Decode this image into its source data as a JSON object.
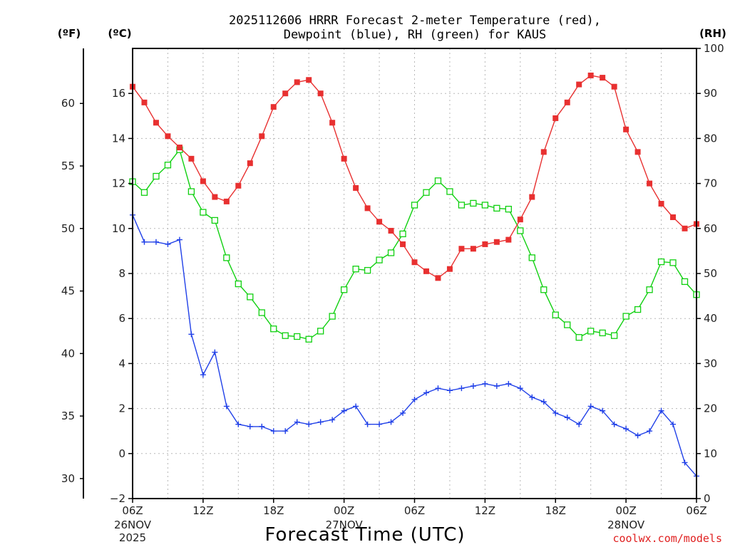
{
  "chart_data": {
    "type": "line",
    "title_line1": "2025112606 HRRR Forecast 2-meter Temperature (red),",
    "title_line2": "Dewpoint (blue), RH (green) for KAUS",
    "unit_f": "(ºF)",
    "unit_c": "(ºC)",
    "unit_rh": "(RH)",
    "xlabel": "Forecast Time (UTC)",
    "credit": "coolwx.com/models",
    "hour_range": [
      0,
      48
    ],
    "c_range": [
      -2,
      18
    ],
    "rh_range": [
      0,
      100
    ],
    "c_ticks": [
      "−2",
      "0",
      "2",
      "4",
      "6",
      "8",
      "10",
      "12",
      "14",
      "16"
    ],
    "rh_ticks": [
      "0",
      "10",
      "20",
      "30",
      "40",
      "50",
      "60",
      "70",
      "80",
      "90",
      "100"
    ],
    "f_ticks": [
      "30",
      "35",
      "40",
      "45",
      "50",
      "55",
      "60"
    ],
    "x_ticks": [
      {
        "hour": 0,
        "label": "06Z"
      },
      {
        "hour": 6,
        "label": "12Z"
      },
      {
        "hour": 12,
        "label": "18Z"
      },
      {
        "hour": 18,
        "label": "00Z"
      },
      {
        "hour": 24,
        "label": "06Z"
      },
      {
        "hour": 30,
        "label": "12Z"
      },
      {
        "hour": 36,
        "label": "18Z"
      },
      {
        "hour": 42,
        "label": "00Z"
      },
      {
        "hour": 48,
        "label": "06Z"
      }
    ],
    "date_labels": [
      {
        "hour": 0,
        "lines": [
          "26NOV",
          "2025"
        ]
      },
      {
        "hour": 18,
        "lines": [
          "27NOV"
        ]
      },
      {
        "hour": 42,
        "lines": [
          "28NOV"
        ]
      }
    ],
    "colors": {
      "temperature": "#e83030",
      "dewpoint": "#2040e8",
      "rh": "#10d010"
    },
    "series": [
      {
        "name": "Temperature",
        "unit": "C",
        "marker": "filled-square",
        "values": [
          16.3,
          15.6,
          14.7,
          14.1,
          13.6,
          13.1,
          12.1,
          11.4,
          11.2,
          11.9,
          12.9,
          14.1,
          15.4,
          16.0,
          16.5,
          16.6,
          16.0,
          14.7,
          13.1,
          11.8,
          10.9,
          10.3,
          9.9,
          9.3,
          8.5,
          8.1,
          7.8,
          8.2,
          9.1,
          9.1,
          9.3,
          9.4,
          9.5,
          10.4,
          11.4,
          13.4,
          14.9,
          15.6,
          16.4,
          16.8,
          16.7,
          16.3,
          14.4,
          13.4,
          12.0,
          11.1,
          10.5,
          10.0,
          10.2
        ]
      },
      {
        "name": "Dewpoint",
        "unit": "C",
        "marker": "plus",
        "values": [
          10.6,
          9.4,
          9.4,
          9.3,
          9.5,
          5.3,
          3.5,
          4.5,
          2.1,
          1.3,
          1.2,
          1.2,
          1.0,
          1.0,
          1.4,
          1.3,
          1.4,
          1.5,
          1.9,
          2.1,
          1.3,
          1.3,
          1.4,
          1.8,
          2.4,
          2.7,
          2.9,
          2.8,
          2.9,
          3.0,
          3.1,
          3.0,
          3.1,
          2.9,
          2.5,
          2.3,
          1.8,
          1.6,
          1.3,
          2.1,
          1.9,
          1.3,
          1.1,
          0.8,
          1.0,
          1.9,
          1.3,
          -0.4,
          -1.0
        ]
      },
      {
        "name": "RH",
        "unit": "%",
        "marker": "open-square",
        "values": [
          70.4,
          68.0,
          71.6,
          74.1,
          77.5,
          68.2,
          63.6,
          61.8,
          53.5,
          47.7,
          44.8,
          41.3,
          37.7,
          36.2,
          36.0,
          35.4,
          37.2,
          40.5,
          46.4,
          51.0,
          50.7,
          53.0,
          54.6,
          58.8,
          65.2,
          68.0,
          70.6,
          68.2,
          65.2,
          65.6,
          65.2,
          64.5,
          64.3,
          59.5,
          53.5,
          46.4,
          40.8,
          38.6,
          35.8,
          37.2,
          36.8,
          36.2,
          40.5,
          42.0,
          46.4,
          52.6,
          52.4,
          48.2,
          45.3
        ]
      }
    ]
  }
}
